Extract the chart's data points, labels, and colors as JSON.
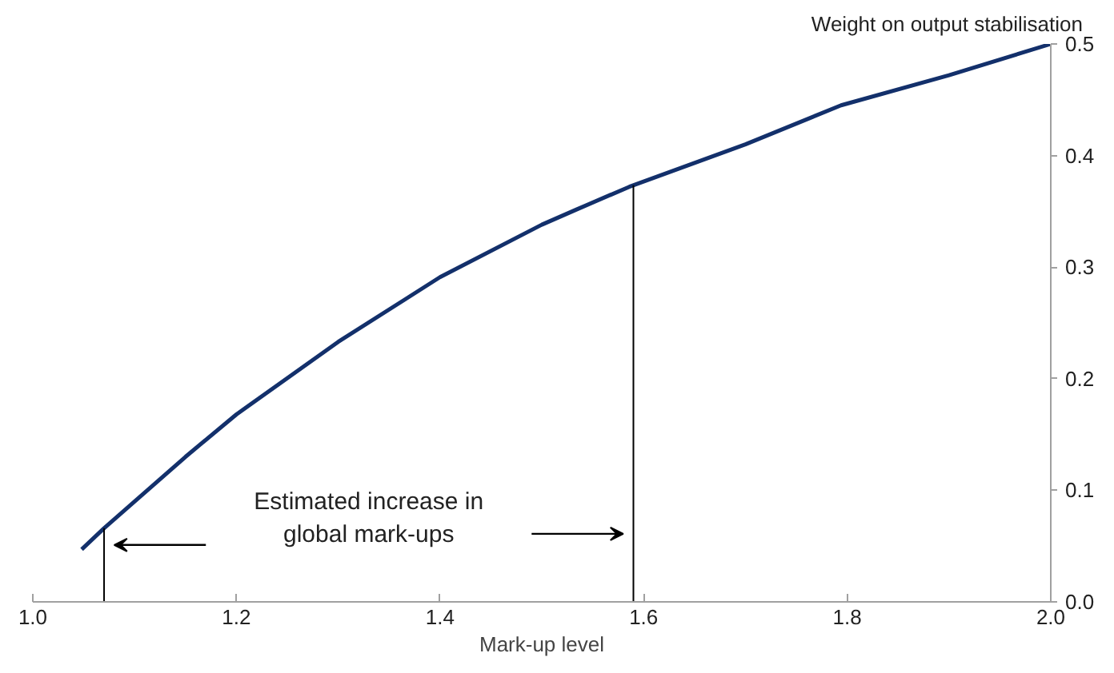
{
  "chart_data": {
    "type": "line",
    "xlabel": "Mark-up level",
    "ylabel": "Weight on output stabilisation",
    "x": [
      1.048,
      1.07,
      1.1,
      1.15,
      1.2,
      1.3,
      1.4,
      1.5,
      1.535,
      1.586,
      1.7,
      1.794,
      1.9,
      2.0
    ],
    "series": [
      {
        "color": "#13306b",
        "values": [
          0.047,
          0.066,
          0.09,
          0.13,
          0.168,
          0.233,
          0.291,
          0.338,
          0.352,
          0.372,
          0.41,
          0.445,
          0.472,
          0.5
        ]
      }
    ],
    "xlim": [
      1.0,
      2.0
    ],
    "ylim": [
      0.0,
      0.5
    ],
    "xticks": [
      {
        "value": 1.0,
        "label": "1.0"
      },
      1.2,
      1.4,
      1.6,
      1.8,
      {
        "value": 2.0,
        "label": "2.0"
      }
    ],
    "yticks": [
      {
        "value": 0.0,
        "label": "0.0"
      },
      0.1,
      0.2,
      0.3,
      0.4,
      0.5
    ],
    "ref_lines": [
      {
        "axis": "x",
        "value": 1.07,
        "color": "#000000"
      },
      {
        "axis": "x",
        "value": 1.59,
        "color": "#000000"
      }
    ],
    "annotations": [
      "Estimated increase in\nglobal mark-ups"
    ],
    "grid": false,
    "marker": "none",
    "line_style": "solid"
  }
}
